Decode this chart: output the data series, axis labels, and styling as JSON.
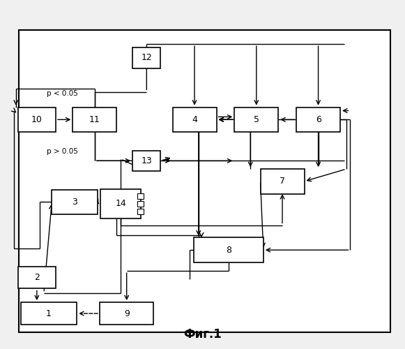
{
  "title": "Фиг.1",
  "bg": "#f0f0f0",
  "boxes": {
    "1": [
      0.115,
      0.095,
      0.14,
      0.065
    ],
    "2": [
      0.085,
      0.2,
      0.095,
      0.065
    ],
    "3": [
      0.18,
      0.42,
      0.115,
      0.072
    ],
    "4": [
      0.48,
      0.66,
      0.11,
      0.072
    ],
    "5": [
      0.635,
      0.66,
      0.11,
      0.072
    ],
    "6": [
      0.79,
      0.66,
      0.11,
      0.072
    ],
    "7": [
      0.7,
      0.48,
      0.11,
      0.072
    ],
    "8": [
      0.565,
      0.28,
      0.175,
      0.072
    ],
    "9": [
      0.31,
      0.095,
      0.135,
      0.065
    ],
    "10": [
      0.085,
      0.66,
      0.095,
      0.072
    ],
    "11": [
      0.23,
      0.66,
      0.11,
      0.072
    ],
    "12": [
      0.36,
      0.84,
      0.07,
      0.06
    ],
    "13": [
      0.36,
      0.54,
      0.07,
      0.06
    ],
    "14": [
      0.295,
      0.415,
      0.1,
      0.085
    ]
  },
  "label_p_lt": "p < 0.05",
  "label_p_gt": "p > 0.05"
}
